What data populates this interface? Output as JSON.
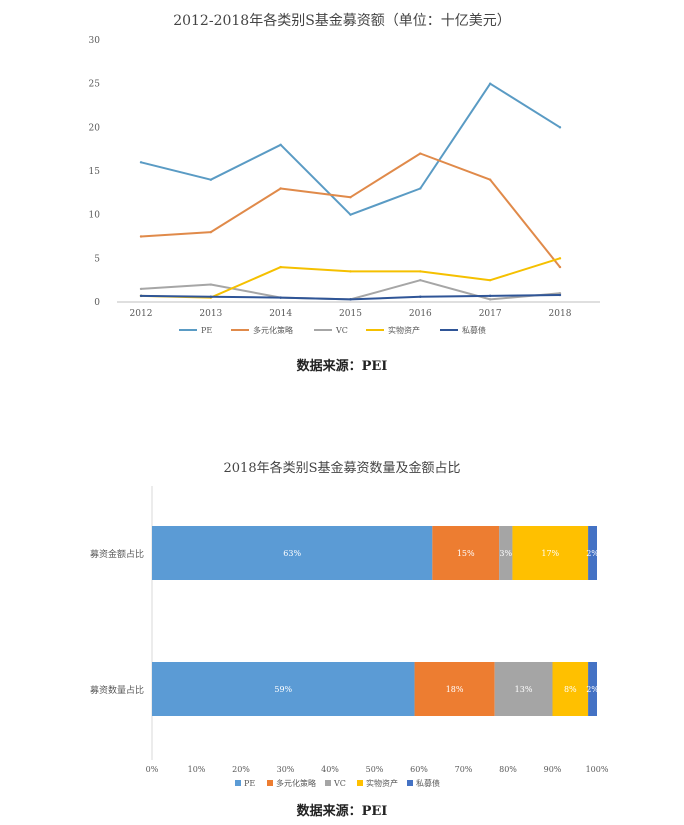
{
  "sources": {
    "top": "数据来源：PEI",
    "bottom": "数据来源：PEI"
  },
  "chart_data": [
    {
      "type": "line",
      "title": "2012-2018年各类别S基金募资额（单位：十亿美元）",
      "x": [
        "2012",
        "2013",
        "2014",
        "2015",
        "2016",
        "2017",
        "2018"
      ],
      "ylim": [
        0,
        30
      ],
      "yticks": [
        0,
        5,
        10,
        15,
        20,
        25,
        30
      ],
      "grid": false,
      "legend_position": "bottom",
      "series": [
        {
          "name": "PE",
          "color": "#5a9bc4",
          "values": [
            16,
            14,
            18,
            10,
            13,
            25,
            20
          ]
        },
        {
          "name": "多元化策略",
          "color": "#e08a4a",
          "values": [
            7.5,
            8,
            13,
            12,
            17,
            14,
            4
          ]
        },
        {
          "name": "VC",
          "color": "#a6a6a6",
          "values": [
            1.5,
            2,
            0.5,
            0.3,
            2.5,
            0.3,
            1
          ]
        },
        {
          "name": "实物资产",
          "color": "#f5c000",
          "values": [
            0.7,
            0.5,
            4,
            3.5,
            3.5,
            2.5,
            5
          ]
        },
        {
          "name": "私募债",
          "color": "#2f5597",
          "values": [
            0.7,
            0.6,
            0.5,
            0.3,
            0.6,
            0.7,
            0.8
          ]
        }
      ]
    },
    {
      "type": "bar",
      "orientation": "horizontal",
      "stacked": "percent",
      "title": "2018年各类别S基金募资数量及金额占比",
      "categories": [
        "募资金额占比",
        "募资数量占比"
      ],
      "xlim": [
        0,
        100
      ],
      "xticks": [
        "0%",
        "10%",
        "20%",
        "30%",
        "40%",
        "50%",
        "60%",
        "70%",
        "80%",
        "90%",
        "100%"
      ],
      "legend_position": "bottom",
      "series": [
        {
          "name": "PE",
          "color": "#5b9bd5",
          "values": [
            63,
            59
          ],
          "labels": [
            "63%",
            "59%"
          ]
        },
        {
          "name": "多元化策略",
          "color": "#ed7d31",
          "values": [
            15,
            18
          ],
          "labels": [
            "15%",
            "18%"
          ]
        },
        {
          "name": "VC",
          "color": "#a5a5a5",
          "values": [
            3,
            13
          ],
          "labels": [
            "3%",
            "13%"
          ]
        },
        {
          "name": "实物资产",
          "color": "#ffc000",
          "values": [
            17,
            8
          ],
          "labels": [
            "17%",
            "8%"
          ]
        },
        {
          "name": "私募债",
          "color": "#4472c4",
          "values": [
            2,
            2
          ],
          "labels": [
            "2%",
            "2%"
          ]
        }
      ]
    }
  ]
}
